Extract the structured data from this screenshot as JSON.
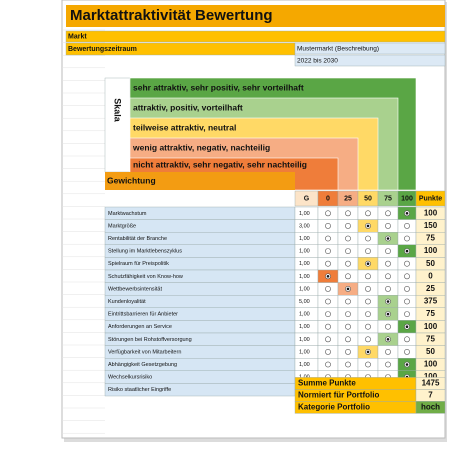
{
  "title": "Marktattraktivität Bewertung",
  "info": {
    "labels": [
      "Markt",
      "Bewertungszeitraum"
    ],
    "values": [
      "Mustermarkt (Beschreibung)",
      "2022 bis 2030"
    ]
  },
  "scale": {
    "label": "Skala",
    "levels": [
      "sehr attraktiv, sehr positiv, sehr vorteilhaft",
      "attraktiv, positiv, vorteilhaft",
      "teilweise attraktiv, neutral",
      "wenig attraktiv, negativ, nachteilig",
      "nicht attraktiv, sehr negativ, sehr nachteilig"
    ]
  },
  "weighting": {
    "label": "Gewichtung",
    "weight_header": "G",
    "columns": [
      0,
      25,
      50,
      75,
      100
    ],
    "points_header": "Punkte"
  },
  "rows": [
    {
      "name": "Marktwachstum",
      "weight": "1,00",
      "rating": 100,
      "points": 100
    },
    {
      "name": "Marktgröße",
      "weight": "3,00",
      "rating": 50,
      "points": 150
    },
    {
      "name": "Rentabilität der Branche",
      "weight": "1,00",
      "rating": 75,
      "points": 75
    },
    {
      "name": "Stellung im Marktlebenszyklus",
      "weight": "1,00",
      "rating": 100,
      "points": 100
    },
    {
      "name": "Spielraum für Preispolitik",
      "weight": "1,00",
      "rating": 50,
      "points": 50
    },
    {
      "name": "Schutzfähigkeit von Know-how",
      "weight": "1,00",
      "rating": 0,
      "points": 0
    },
    {
      "name": "Wettbewerbsintensität",
      "weight": "1,00",
      "rating": 25,
      "points": 25
    },
    {
      "name": "Kundenloyalität",
      "weight": "5,00",
      "rating": 75,
      "points": 375
    },
    {
      "name": "Eintrittsbarrieren für Anbieter",
      "weight": "1,00",
      "rating": 75,
      "points": 75
    },
    {
      "name": "Anforderungen an Service",
      "weight": "1,00",
      "rating": 100,
      "points": 100
    },
    {
      "name": "Störungen bei Rohstoffversorgung",
      "weight": "1,00",
      "rating": 75,
      "points": 75
    },
    {
      "name": "Verfügbarkeit von Mitarbeitern",
      "weight": "1,00",
      "rating": 50,
      "points": 50
    },
    {
      "name": "Abhängigkeit Gesetzgebung",
      "weight": "1,00",
      "rating": 100,
      "points": 100
    },
    {
      "name": "Wechselkursrisiko",
      "weight": "1,00",
      "rating": 100,
      "points": 100
    },
    {
      "name": "Risiko staatlicher Eingriffe"
    }
  ],
  "summary": [
    {
      "label": "Summe Punkte",
      "value": 1475
    },
    {
      "label": "Normiert für Portfolio",
      "value": 7
    },
    {
      "label": "Kategorie Portfolio",
      "value": "hoch"
    }
  ]
}
